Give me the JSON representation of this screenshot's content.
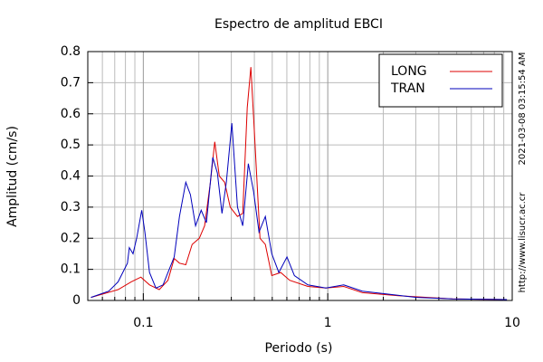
{
  "chart_data": {
    "type": "line",
    "title": "Espectro de amplitud EBCI",
    "xlabel": "Periodo (s)",
    "ylabel": "Amplitud (cm/s)",
    "xscale": "log",
    "xlim": [
      0.05,
      10
    ],
    "xticks": [
      0.1,
      1,
      10
    ],
    "xminorticks": [
      0.06,
      0.07,
      0.08,
      0.09,
      0.2,
      0.3,
      0.4,
      0.5,
      0.6,
      0.7,
      0.8,
      0.9,
      2,
      3,
      4,
      5,
      6,
      7,
      8,
      9
    ],
    "ylim": [
      0,
      0.8
    ],
    "yticks": [
      0,
      0.1,
      0.2,
      0.3,
      0.4,
      0.5,
      0.6,
      0.7,
      0.8
    ],
    "grid": true,
    "legend": "upper right",
    "annotations": [
      "2021-03-08 03:15:54 AM",
      "http://www.lisucr.ac.cr"
    ],
    "series": [
      {
        "name": "LONG",
        "color": "#dd0000",
        "x": [
          0.052,
          0.073,
          0.086,
          0.097,
          0.108,
          0.122,
          0.136,
          0.147,
          0.157,
          0.17,
          0.184,
          0.201,
          0.215,
          0.231,
          0.244,
          0.258,
          0.276,
          0.296,
          0.324,
          0.346,
          0.366,
          0.383,
          0.401,
          0.429,
          0.459,
          0.497,
          0.556,
          0.622,
          0.78,
          0.977,
          1.22,
          1.54,
          2.41,
          4.75,
          9.35
        ],
        "values": [
          0.01,
          0.035,
          0.06,
          0.075,
          0.05,
          0.035,
          0.065,
          0.135,
          0.12,
          0.115,
          0.18,
          0.2,
          0.24,
          0.38,
          0.51,
          0.4,
          0.38,
          0.3,
          0.27,
          0.28,
          0.62,
          0.75,
          0.53,
          0.2,
          0.18,
          0.08,
          0.09,
          0.065,
          0.045,
          0.04,
          0.045,
          0.025,
          0.015,
          0.005,
          0.003
        ]
      },
      {
        "name": "TRAN",
        "color": "#0000bb",
        "x": [
          0.052,
          0.065,
          0.073,
          0.082,
          0.084,
          0.088,
          0.092,
          0.098,
          0.102,
          0.108,
          0.117,
          0.128,
          0.136,
          0.147,
          0.157,
          0.17,
          0.18,
          0.192,
          0.206,
          0.22,
          0.238,
          0.252,
          0.267,
          0.282,
          0.302,
          0.324,
          0.346,
          0.371,
          0.396,
          0.424,
          0.459,
          0.497,
          0.543,
          0.601,
          0.659,
          0.78,
          0.977,
          1.22,
          1.54,
          2.15,
          3.02,
          4.75,
          9.35
        ],
        "values": [
          0.01,
          0.03,
          0.06,
          0.12,
          0.17,
          0.15,
          0.2,
          0.29,
          0.22,
          0.09,
          0.04,
          0.05,
          0.09,
          0.14,
          0.27,
          0.38,
          0.34,
          0.24,
          0.29,
          0.25,
          0.46,
          0.41,
          0.28,
          0.38,
          0.57,
          0.3,
          0.24,
          0.44,
          0.35,
          0.22,
          0.27,
          0.15,
          0.09,
          0.14,
          0.08,
          0.05,
          0.04,
          0.05,
          0.03,
          0.02,
          0.01,
          0.005,
          0.003
        ]
      }
    ]
  }
}
